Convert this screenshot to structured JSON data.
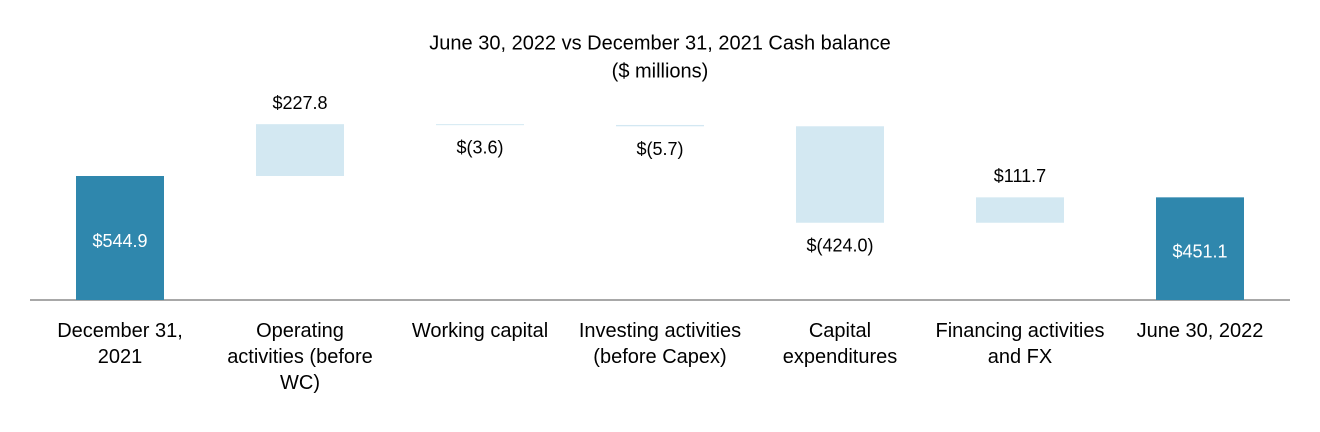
{
  "chart_data": {
    "type": "waterfall",
    "title": "June 30, 2022 vs December 31, 2021 Cash  balance",
    "subtitle": "($ millions)",
    "categories": [
      "December 31, 2021",
      "Operating activities (before WC)",
      "Working capital",
      "Investing activities (before Capex)",
      "Capital expenditures",
      "Financing activities and FX",
      "June 30, 2022"
    ],
    "values": [
      544.9,
      227.8,
      -3.6,
      -5.7,
      -424.0,
      111.7,
      451.1
    ],
    "value_labels": [
      "$544.9",
      "$227.8",
      "$(3.6)",
      "$(5.7)",
      "$(424.0)",
      "$111.7",
      "$451.1"
    ],
    "measures": [
      "absolute",
      "relative",
      "relative",
      "relative",
      "relative",
      "relative",
      "total"
    ],
    "total_color": "#2f87ad",
    "change_color": "#d3e8f2"
  }
}
